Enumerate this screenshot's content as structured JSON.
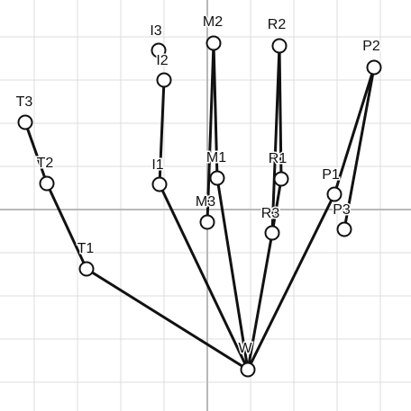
{
  "joints": [
    {
      "id": "W",
      "label": "W"
    },
    {
      "id": "T1",
      "label": "T1"
    },
    {
      "id": "T2",
      "label": "T2"
    },
    {
      "id": "T3",
      "label": "T3"
    },
    {
      "id": "I1",
      "label": "I1"
    },
    {
      "id": "I2",
      "label": "I2"
    },
    {
      "id": "I3",
      "label": "I3"
    },
    {
      "id": "M1",
      "label": "M1"
    },
    {
      "id": "M2",
      "label": "M2"
    },
    {
      "id": "M3",
      "label": "M3"
    },
    {
      "id": "R1",
      "label": "R1"
    },
    {
      "id": "R2",
      "label": "R2"
    },
    {
      "id": "R3",
      "label": "R3"
    },
    {
      "id": "P1",
      "label": "P1"
    },
    {
      "id": "P2",
      "label": "P2"
    },
    {
      "id": "P3",
      "label": "P3"
    }
  ],
  "bones": [
    [
      "W",
      "T1"
    ],
    [
      "T1",
      "T2"
    ],
    [
      "T2",
      "T3"
    ],
    [
      "W",
      "I1"
    ],
    [
      "I1",
      "I2"
    ],
    [
      "W",
      "M1"
    ],
    [
      "M1",
      "M2"
    ],
    [
      "M2",
      "M3"
    ],
    [
      "W",
      "R3"
    ],
    [
      "R3",
      "R1"
    ],
    [
      "R1",
      "R2"
    ],
    [
      "R2",
      "R3"
    ],
    [
      "W",
      "P1"
    ],
    [
      "P1",
      "P2"
    ],
    [
      "P2",
      "P3"
    ]
  ],
  "colors": {
    "grid": "#dcdcdc",
    "axis": "#b8b8b8",
    "bone": "#111111",
    "joint_fill": "#ffffff"
  }
}
